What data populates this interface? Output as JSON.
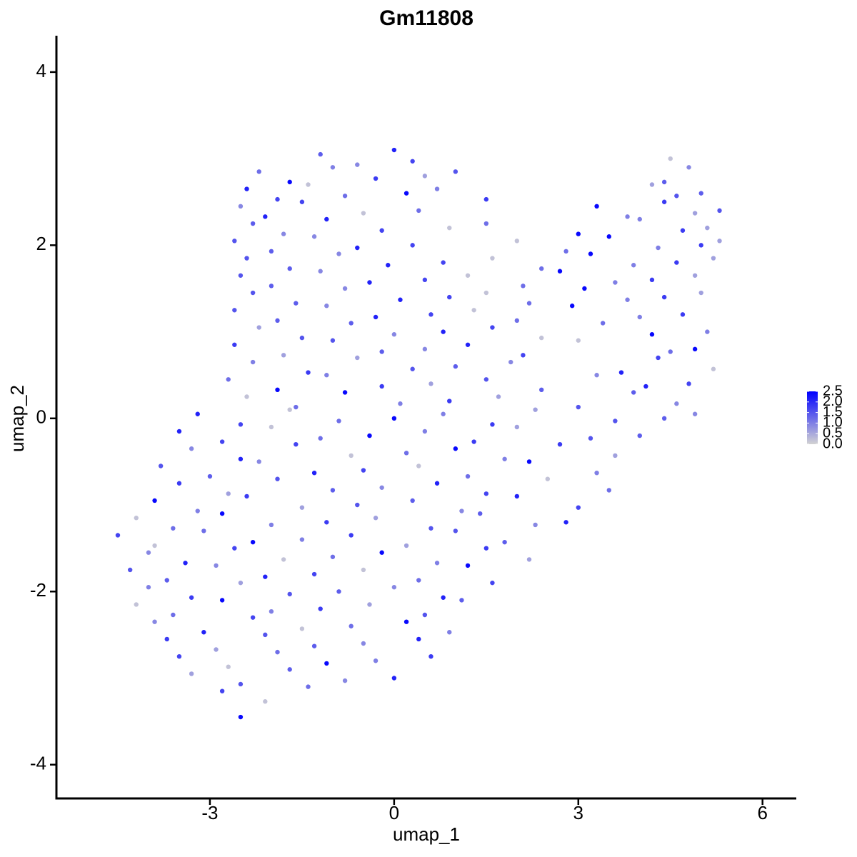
{
  "chart_data": {
    "type": "scatter",
    "title": "Gm11808",
    "x_label": "umap_1",
    "y_label": "umap_2",
    "xlim": [
      -5.5,
      6.55
    ],
    "ylim": [
      -4.39,
      4.42
    ],
    "xticks": [
      -3,
      0,
      3,
      6
    ],
    "yticks": [
      -4,
      -2,
      0,
      2,
      4
    ],
    "color_low": "#d3d3d3",
    "color_high": "#0000ff",
    "clim": [
      0,
      2.5
    ],
    "colorbar_ticks": [
      {
        "value": 0,
        "label": "0.0"
      },
      0.5,
      {
        "value": 1,
        "label": "1.0"
      },
      1.5,
      {
        "value": 2,
        "label": "2.0"
      },
      2.5
    ],
    "series": [
      {
        "x": [
          -1.2,
          -0.6,
          0.0,
          0.3,
          4.5,
          -2.2,
          -1.7,
          -1.0,
          -0.3,
          0.5,
          1.0,
          4.4,
          4.8,
          -2.4,
          -1.9,
          -1.4,
          -0.8,
          0.2,
          0.7,
          1.5,
          4.2,
          4.6,
          5.0,
          -2.5,
          -2.1,
          -1.5,
          -0.5,
          0.4,
          3.3,
          3.8,
          4.4,
          4.9,
          5.3,
          -2.3,
          -1.8,
          -1.1,
          -0.2,
          0.9,
          1.5,
          3.0,
          4.0,
          4.7,
          5.1,
          -2.6,
          -2.0,
          -1.3,
          -0.6,
          0.3,
          2.0,
          2.8,
          3.5,
          4.3,
          5.0,
          5.3,
          -2.4,
          -1.7,
          -0.9,
          -0.1,
          0.8,
          1.6,
          2.4,
          3.2,
          3.9,
          4.6,
          5.2,
          -2.5,
          -2.0,
          -1.2,
          -0.4,
          0.5,
          1.2,
          2.1,
          2.7,
          3.6,
          4.2,
          4.9,
          -2.3,
          -1.6,
          -0.8,
          0.1,
          0.9,
          1.5,
          2.2,
          3.1,
          3.8,
          4.4,
          5.0,
          -2.6,
          -1.9,
          -1.1,
          -0.3,
          0.6,
          1.3,
          2.0,
          2.9,
          4.0,
          4.7,
          -2.2,
          -1.5,
          -0.7,
          0.0,
          0.8,
          1.6,
          2.4,
          3.4,
          4.2,
          5.1,
          -2.6,
          -1.8,
          -1.0,
          -0.2,
          0.5,
          1.2,
          2.1,
          3.0,
          4.5,
          4.9,
          -2.3,
          -1.4,
          -0.6,
          0.3,
          1.0,
          1.9,
          3.7,
          4.3,
          5.2,
          -2.7,
          -1.9,
          -1.1,
          -0.2,
          0.6,
          1.5,
          2.4,
          3.3,
          4.1,
          4.8,
          -2.4,
          -1.6,
          -0.8,
          0.1,
          0.9,
          1.7,
          3.0,
          3.9,
          4.6,
          -3.2,
          -2.5,
          -1.7,
          -0.9,
          0.0,
          0.8,
          1.6,
          2.3,
          3.6,
          4.4,
          4.9,
          -3.5,
          -2.8,
          -2.0,
          -1.2,
          -0.4,
          0.5,
          1.3,
          2.0,
          3.2,
          4.0,
          -3.3,
          -2.5,
          -1.6,
          -0.7,
          0.2,
          1.0,
          1.8,
          2.7,
          3.6,
          -3.8,
          -3.0,
          -2.2,
          -1.3,
          -0.5,
          0.4,
          1.2,
          2.2,
          3.3,
          -3.5,
          -2.7,
          -1.9,
          -1.0,
          -0.2,
          0.7,
          1.5,
          2.5,
          3.5,
          -3.9,
          -3.2,
          -2.4,
          -1.5,
          -0.6,
          0.3,
          1.1,
          2.0,
          3.0,
          -4.2,
          -3.6,
          -2.8,
          -2.0,
          -1.1,
          -0.3,
          0.6,
          1.4,
          2.3,
          2.8,
          -4.5,
          -3.9,
          -3.1,
          -2.3,
          -1.5,
          -0.7,
          0.2,
          1.0,
          1.8,
          -4.0,
          -3.4,
          -2.6,
          -1.8,
          -1.0,
          -0.2,
          0.7,
          1.5,
          2.2,
          -4.3,
          -3.7,
          -2.9,
          -2.1,
          -1.3,
          -0.5,
          0.4,
          1.2,
          -4.0,
          -3.3,
          -2.5,
          -1.7,
          -0.9,
          0.0,
          0.8,
          1.6,
          -4.2,
          -3.6,
          -2.8,
          -2.0,
          -1.2,
          -0.4,
          0.5,
          1.1,
          -3.9,
          -3.1,
          -2.3,
          -1.5,
          -0.7,
          0.2,
          0.9,
          -3.7,
          -2.9,
          -2.1,
          -1.3,
          -0.5,
          0.4,
          -3.5,
          -2.7,
          -1.9,
          -1.1,
          -0.3,
          0.6,
          -3.3,
          -2.5,
          -1.7,
          -0.8,
          0.0,
          -2.8,
          -2.1,
          -1.4,
          -2.5
        ],
        "values": [
          3.05,
          2.93,
          3.1,
          2.97,
          3.0,
          2.85,
          2.73,
          2.9,
          2.77,
          2.8,
          2.85,
          2.73,
          2.9,
          2.65,
          2.53,
          2.7,
          2.57,
          2.6,
          2.65,
          2.53,
          2.7,
          2.57,
          2.6,
          2.45,
          2.33,
          2.5,
          2.37,
          2.4,
          2.45,
          2.33,
          2.5,
          2.37,
          2.4,
          2.25,
          2.13,
          2.3,
          2.17,
          2.2,
          2.25,
          2.13,
          2.3,
          2.17,
          2.2,
          2.05,
          1.93,
          2.1,
          1.97,
          2,
          2.05,
          1.93,
          2.1,
          1.97,
          2,
          2.05,
          1.85,
          1.73,
          1.9,
          1.77,
          1.8,
          1.85,
          1.73,
          1.9,
          1.77,
          1.8,
          1.85,
          1.65,
          1.53,
          1.7,
          1.57,
          1.6,
          1.65,
          1.53,
          1.7,
          1.57,
          1.6,
          1.65,
          1.45,
          1.33,
          1.5,
          1.37,
          1.4,
          1.45,
          1.33,
          1.5,
          1.37,
          1.4,
          1.45,
          1.25,
          1.13,
          1.3,
          1.17,
          1.2,
          1.25,
          1.13,
          1.3,
          1.17,
          1.2,
          1.05,
          0.93,
          1.1,
          0.97,
          1,
          1.05,
          0.93,
          1.1,
          0.97,
          1,
          0.85,
          0.73,
          0.9,
          0.77,
          0.8,
          0.85,
          0.73,
          0.9,
          0.77,
          0.8,
          0.65,
          0.53,
          0.7,
          0.57,
          0.6,
          0.65,
          0.53,
          0.7,
          0.57,
          0.45,
          0.33,
          0.5,
          0.37,
          0.4,
          0.45,
          0.33,
          0.5,
          0.37,
          0.4,
          0.25,
          0.13,
          0.3,
          0.17,
          0.2,
          0.25,
          0.13,
          0.3,
          0.17,
          0.05,
          -0.07,
          0.1,
          -0.03,
          0,
          0.05,
          -0.07,
          0.1,
          -0.03,
          0,
          0.05,
          -0.15,
          -0.27,
          -0.1,
          -0.23,
          -0.2,
          -0.15,
          -0.27,
          -0.1,
          -0.23,
          -0.2,
          -0.35,
          -0.47,
          -0.3,
          -0.43,
          -0.4,
          -0.35,
          -0.47,
          -0.3,
          -0.43,
          -0.55,
          -0.67,
          -0.5,
          -0.63,
          -0.6,
          -0.55,
          -0.67,
          -0.5,
          -0.63,
          -0.75,
          -0.87,
          -0.7,
          -0.83,
          -0.8,
          -0.75,
          -0.87,
          -0.7,
          -0.83,
          -0.95,
          -1.07,
          -0.9,
          -1.03,
          -1,
          -0.95,
          -1.07,
          -0.9,
          -1.03,
          -1.15,
          -1.27,
          -1.1,
          -1.23,
          -1.2,
          -1.15,
          -1.27,
          -1.1,
          -1.23,
          -1.2,
          -1.35,
          -1.47,
          -1.3,
          -1.43,
          -1.4,
          -1.35,
          -1.47,
          -1.3,
          -1.43,
          -1.55,
          -1.67,
          -1.5,
          -1.63,
          -1.6,
          -1.55,
          -1.67,
          -1.5,
          -1.63,
          -1.75,
          -1.87,
          -1.7,
          -1.83,
          -1.8,
          -1.75,
          -1.87,
          -1.7,
          -1.95,
          -2.07,
          -1.9,
          -2.03,
          -2,
          -1.95,
          -2.07,
          -1.9,
          -2.15,
          -2.27,
          -2.1,
          -2.23,
          -2.2,
          -2.15,
          -2.27,
          -2.1,
          -2.35,
          -2.47,
          -2.3,
          -2.43,
          -2.4,
          -2.35,
          -2.47,
          -2.55,
          -2.67,
          -2.5,
          -2.63,
          -2.6,
          -2.55,
          -2.75,
          -2.87,
          -2.7,
          -2.83,
          -2.8,
          -2.75,
          -2.95,
          -3.07,
          -2.9,
          -3.03,
          -3,
          -3.15,
          -3.27,
          -3.1,
          -3.45
        ],
        "expression": [
          1.4,
          0.9,
          2.1,
          1.7,
          0.2,
          1.2,
          2.4,
          1.0,
          1.8,
          0.6,
          1.5,
          1.4,
          0.9,
          2.1,
          1.7,
          0.2,
          1.2,
          2.4,
          1.0,
          1.8,
          0.6,
          1.5,
          1.4,
          0.9,
          2.1,
          1.7,
          0.2,
          1.2,
          2.4,
          1.0,
          1.8,
          0.6,
          1.5,
          1.4,
          0.9,
          2.1,
          1.7,
          0.2,
          1.2,
          2.4,
          1.0,
          1.8,
          0.6,
          1.5,
          1.4,
          0.9,
          2.1,
          1.7,
          0.2,
          1.2,
          2.4,
          1.0,
          1.8,
          0.6,
          1.5,
          1.4,
          0.9,
          2.1,
          1.7,
          0.2,
          1.2,
          2.4,
          1.0,
          1.8,
          0.6,
          1.5,
          1.4,
          0.9,
          2.1,
          1.7,
          0.2,
          1.2,
          2.4,
          1.0,
          1.8,
          0.6,
          1.5,
          1.4,
          0.9,
          2.1,
          1.7,
          0.2,
          1.2,
          2.4,
          1.0,
          1.8,
          0.6,
          1.5,
          1.4,
          0.9,
          2.1,
          1.7,
          0.2,
          1.2,
          2.4,
          1.0,
          1.8,
          0.6,
          1.5,
          1.4,
          0.9,
          2.1,
          1.7,
          0.2,
          1.2,
          2.4,
          1.0,
          1.8,
          0.6,
          1.5,
          1.4,
          0.9,
          2.1,
          1.7,
          0.2,
          1.2,
          2.4,
          1.0,
          1.8,
          0.6,
          1.5,
          1.4,
          0.9,
          2.1,
          1.7,
          0.2,
          1.2,
          2.4,
          1.0,
          1.8,
          0.6,
          1.5,
          1.4,
          0.9,
          2.1,
          1.7,
          0.2,
          1.2,
          2.4,
          1.0,
          1.8,
          0.6,
          1.5,
          1.4,
          0.9,
          2.1,
          1.7,
          0.2,
          1.2,
          2.4,
          1.0,
          1.8,
          0.6,
          1.5,
          1.4,
          0.9,
          2.1,
          1.7,
          0.2,
          1.2,
          2.4,
          1.0,
          1.8,
          0.6,
          1.5,
          1.4,
          0.9,
          2.1,
          1.7,
          0.2,
          1.2,
          2.4,
          1.0,
          1.8,
          0.6,
          1.5,
          1.4,
          0.9,
          2.1,
          1.7,
          0.2,
          1.2,
          2.4,
          1.0,
          1.8,
          0.6,
          1.5,
          1.4,
          0.9,
          2.1,
          1.7,
          0.2,
          1.2,
          2.4,
          1.0,
          1.8,
          0.6,
          1.5,
          1.4,
          0.9,
          2.1,
          1.7,
          0.2,
          1.2,
          2.4,
          1.0,
          1.8,
          0.6,
          1.5,
          1.4,
          0.9,
          2.1,
          1.7,
          0.2,
          1.2,
          2.4,
          1.0,
          1.8,
          0.6,
          1.5,
          1.4,
          0.9,
          2.1,
          1.7,
          0.2,
          1.2,
          2.4,
          1.0,
          1.8,
          0.6,
          1.5,
          1.4,
          0.9,
          2.1,
          1.7,
          0.2,
          1.2,
          2.4,
          1.0,
          1.8,
          0.6,
          1.5,
          1.4,
          0.9,
          2.1,
          1.7,
          0.2,
          1.2,
          2.4,
          1.0,
          1.8,
          0.6,
          1.5,
          1.4,
          0.9,
          2.1,
          1.7,
          0.2,
          1.2,
          2.4,
          1.0,
          1.8,
          0.6,
          1.5,
          1.4,
          0.9,
          2.1,
          1.7,
          0.2,
          1.2,
          2.4,
          1.0,
          1.8,
          0.6,
          1.5,
          1.4,
          0.9,
          2.1,
          1.7,
          0.2,
          1.2,
          2.4
        ]
      }
    ]
  }
}
